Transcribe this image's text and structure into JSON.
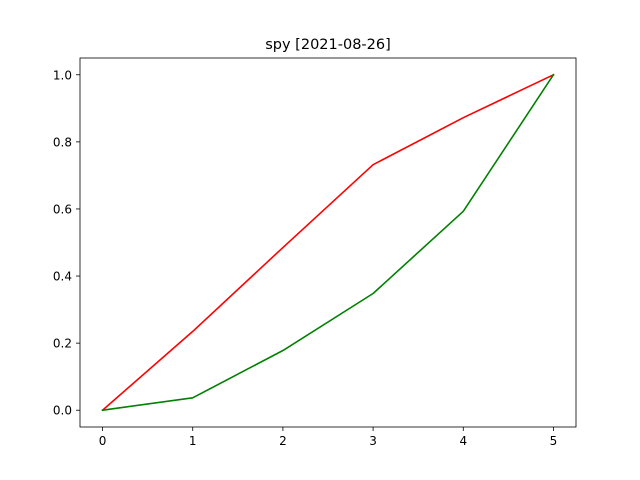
{
  "chart_data": {
    "type": "line",
    "title": "spy [2021-08-26]",
    "xlabel": "",
    "ylabel": "",
    "x": [
      0,
      1,
      2,
      3,
      4,
      5
    ],
    "xlim": [
      -0.25,
      5.25
    ],
    "ylim": [
      -0.05,
      1.05
    ],
    "xticks": [
      0,
      1,
      2,
      3,
      4,
      5
    ],
    "yticks": [
      0.0,
      0.2,
      0.4,
      0.6,
      0.8,
      1.0
    ],
    "xtick_labels": [
      "0",
      "1",
      "2",
      "3",
      "4",
      "5"
    ],
    "ytick_labels": [
      "0.0",
      "0.2",
      "0.4",
      "0.6",
      "0.8",
      "1.0"
    ],
    "grid": false,
    "series": [
      {
        "color": "#ff0000",
        "values": [
          0.0,
          0.235,
          0.485,
          0.732,
          0.872,
          1.0
        ]
      },
      {
        "color": "#008000",
        "values": [
          0.0,
          0.037,
          0.178,
          0.348,
          0.593,
          1.0
        ]
      }
    ]
  }
}
